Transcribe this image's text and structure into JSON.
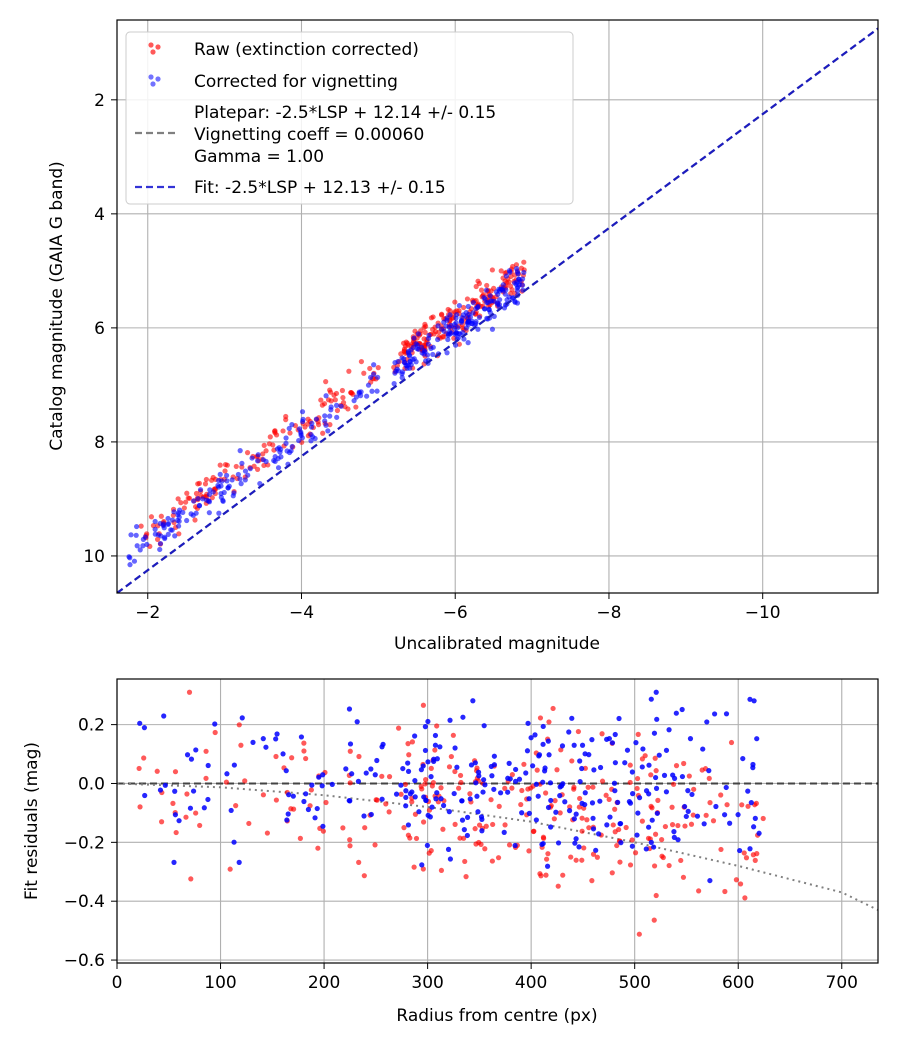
{
  "chart_data": [
    {
      "type": "scatter",
      "xlabel": "Uncalibrated magnitude",
      "ylabel": "Catalog magnitude (GAIA G band)",
      "xlim": [
        -1.6,
        -11.5
      ],
      "ylim": [
        0.6,
        10.65
      ],
      "x_ticks": [
        -2,
        -4,
        -6,
        -8,
        -10
      ],
      "x_tick_labels": [
        "−2",
        "−4",
        "−6",
        "−8",
        "−10"
      ],
      "y_ticks": [
        2,
        4,
        6,
        8,
        10
      ],
      "y_tick_labels": [
        "2",
        "4",
        "6",
        "8",
        "10"
      ],
      "grid": true,
      "legend_position": "top-left",
      "legend": {
        "raw_label": "Raw (extinction corrected)",
        "corrected_label": "Corrected for vignetting",
        "platepar_line1": "Platepar: -2.5*LSP + 12.14 +/- 0.15",
        "platepar_line2": "Vignetting coeff = 0.00060",
        "platepar_line3": "Gamma = 1.00",
        "fit_label": "Fit: -2.5*LSP + 12.13 +/- 0.15"
      },
      "series": [
        {
          "name": "Raw (extinction corrected)",
          "color": "#ff0000",
          "marker": "dot",
          "x_range": [
            -5.0,
            -8.1
          ],
          "fit_offset": 12.14,
          "scatter_sigma": 0.15,
          "n_points": 340
        },
        {
          "name": "Corrected for vignetting",
          "color": "#0000ff",
          "marker": "dot",
          "x_range": [
            -5.0,
            -8.3
          ],
          "fit_offset": 12.13,
          "scatter_sigma": 0.15,
          "n_points": 340
        },
        {
          "name": "Platepar: -2.5*LSP + 12.14 +/- 0.15",
          "color": "#808080",
          "style": "dashed",
          "slope": -2.5,
          "intercept": 12.14
        },
        {
          "name": "Fit: -2.5*LSP + 12.13 +/- 0.15",
          "color": "#0000cc",
          "style": "dashed",
          "slope": -2.5,
          "intercept": 12.13
        }
      ]
    },
    {
      "type": "scatter",
      "xlabel": "Radius from centre (px)",
      "ylabel": "Fit residuals (mag)",
      "xlim": [
        0,
        735
      ],
      "ylim": [
        -0.61,
        0.355
      ],
      "x_ticks": [
        0,
        100,
        200,
        300,
        400,
        500,
        600,
        700
      ],
      "x_tick_labels": [
        "0",
        "100",
        "200",
        "300",
        "400",
        "500",
        "600",
        "700"
      ],
      "y_ticks": [
        0.2,
        0.0,
        -0.2,
        -0.4,
        -0.6
      ],
      "y_tick_labels": [
        "0.2",
        "0.0",
        "−0.2",
        "−0.4",
        "−0.6"
      ],
      "grid": true,
      "series": [
        {
          "name": "Raw residuals",
          "color": "#ff0000",
          "r_range": [
            20,
            630
          ],
          "n_points": 300
        },
        {
          "name": "Corrected residuals",
          "color": "#0000ff",
          "r_range": [
            20,
            630
          ],
          "n_points": 300
        },
        {
          "name": "Zero line",
          "color": "#444444",
          "style": "dashed",
          "y": 0.0
        },
        {
          "name": "Vignetting curve",
          "color": "#808080",
          "style": "dotted",
          "points": [
            [
              0,
              0.0
            ],
            [
              100,
              -0.013
            ],
            [
              200,
              -0.04
            ],
            [
              300,
              -0.08
            ],
            [
              400,
              -0.13
            ],
            [
              500,
              -0.2
            ],
            [
              600,
              -0.28
            ],
            [
              700,
              -0.37
            ],
            [
              735,
              -0.43
            ]
          ]
        }
      ]
    }
  ]
}
